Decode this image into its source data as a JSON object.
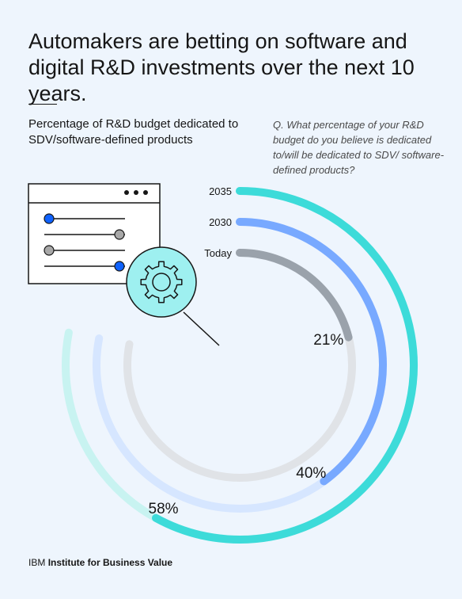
{
  "headline": "Automakers are betting on software and digital R&D investments over the next 10 years.",
  "subtitle": "Percentage of R&D budget dedicated to SDV/software-defined products",
  "question": "Q. What percentage of your R&D budget do you believe is dedicated to/will be dedicated to SDV/ software-defined products?",
  "footer": {
    "brand": "IBM",
    "institute": "Institute for Business Value"
  },
  "icons": [
    "settings-window-icon",
    "gear-icon"
  ],
  "chart_data": {
    "type": "radial-bar",
    "unit": "%",
    "max": 100,
    "series": [
      {
        "label": "2035",
        "value": 58,
        "value_label": "58%",
        "color": "#3ddbd9",
        "track_color": "#c8f3f1"
      },
      {
        "label": "2030",
        "value": 40,
        "value_label": "40%",
        "color": "#78a9ff",
        "track_color": "#d6e6ff"
      },
      {
        "label": "Today",
        "value": 21,
        "value_label": "21%",
        "color": "#9aa2ab",
        "track_color": "#e0e3e7"
      }
    ]
  }
}
